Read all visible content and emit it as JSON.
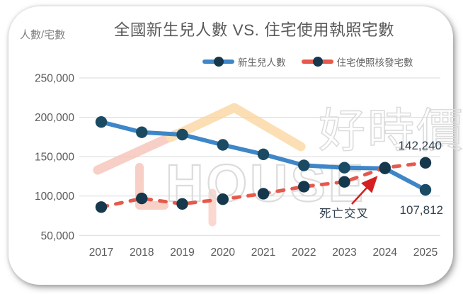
{
  "chart": {
    "title": "全國新生兒人數 VS. 住宅使用執照宅數",
    "y_axis_unit": "人數/宅數"
  },
  "chart_data": {
    "type": "line",
    "title": "全國新生兒人數 VS. 住宅使用執照宅數",
    "ylabel": "人數/宅數",
    "categories": [
      "2017",
      "2018",
      "2019",
      "2020",
      "2021",
      "2022",
      "2023",
      "2024",
      "2025"
    ],
    "series": [
      {
        "name": "新生兒人數",
        "line_style": "solid",
        "color": "#3E86C7",
        "marker_color": "#1B4A63",
        "values": [
          194000,
          181000,
          178000,
          165000,
          153000,
          139000,
          136000,
          135000,
          107812
        ]
      },
      {
        "name": "住宅使照核發宅數",
        "line_style": "dashed",
        "color": "#E55A4C",
        "marker_color": "#16384D",
        "values": [
          86000,
          97000,
          90000,
          96000,
          103000,
          112000,
          118000,
          136000,
          142240
        ]
      }
    ],
    "y_tick_labels": [
      "250,000",
      "200,000",
      "150,000",
      "100,000",
      "50,000"
    ],
    "y_tick_values": [
      250000,
      200000,
      150000,
      100000,
      50000
    ],
    "ylim": [
      50000,
      250000
    ],
    "grid": true,
    "legend_position": "top-center"
  },
  "annotations": {
    "death_cross_label": "死亡交叉",
    "licenses_2025_label": "142,240",
    "newborns_2025_label": "107,812"
  },
  "watermark": {
    "brand_cjk": "好時價",
    "brand_latin": "HOUSE"
  },
  "colors": {
    "newborn_line": "#3E86C7",
    "license_line": "#E55A4C",
    "newborn_marker": "#1B4A63",
    "license_marker": "#16384D",
    "gridline": "#D9D9D9",
    "axis_text": "#595959",
    "title_text": "#595959",
    "annotation_text": "#31404E",
    "arrow_red": "#D42020",
    "watermark_outline": "#DCDCDC",
    "watermark_roof_yellow": "#FBD49B",
    "watermark_roof_pink": "#F5C0B3"
  }
}
